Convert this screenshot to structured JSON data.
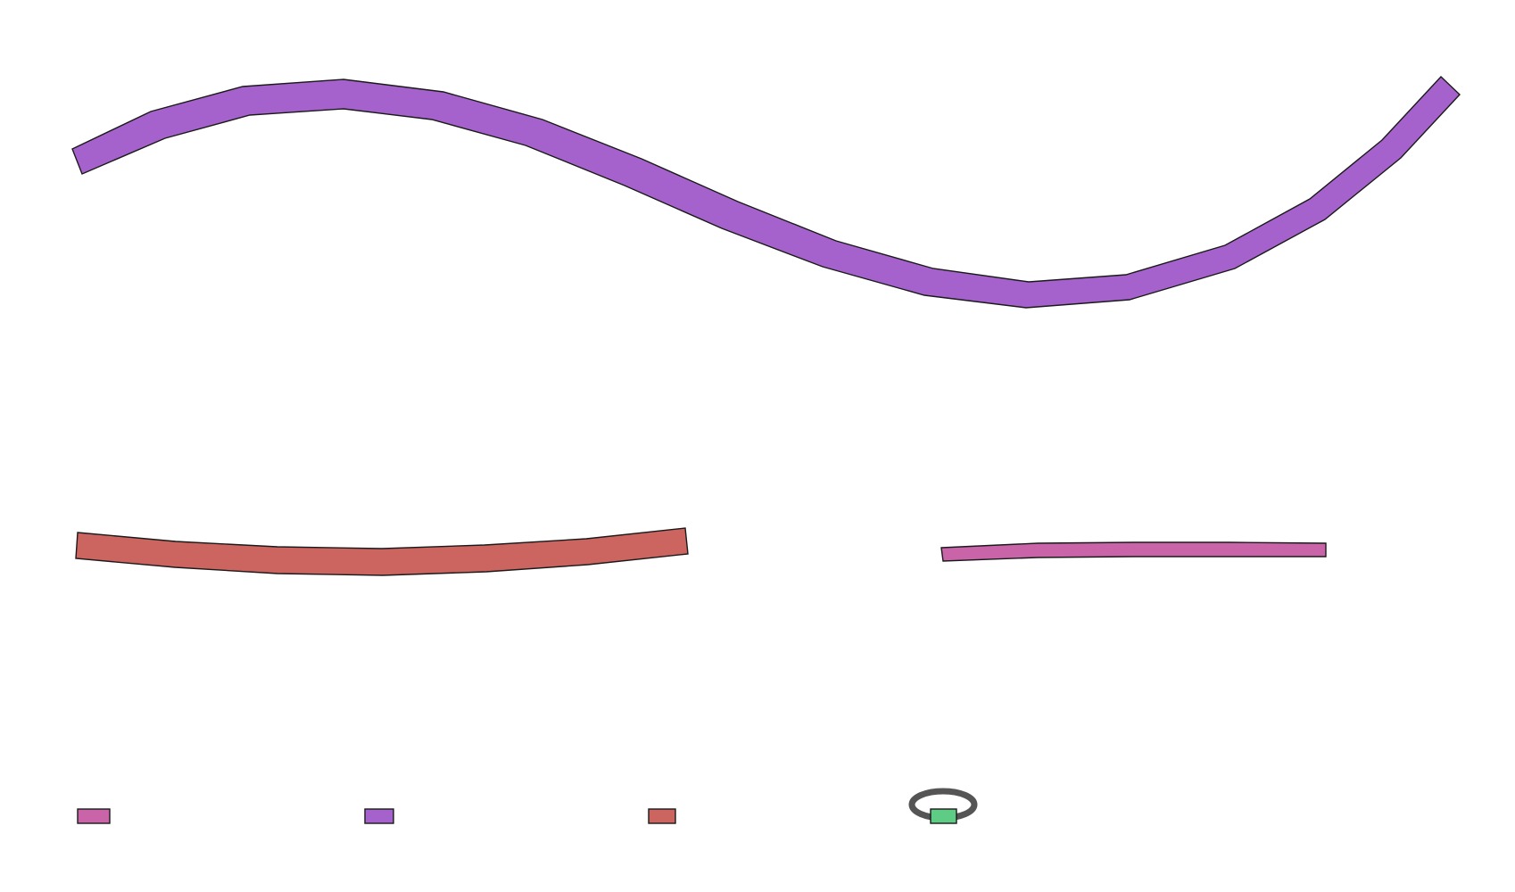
{
  "colors": {
    "background": "#ffffff",
    "outline": "#1a1a1a",
    "purple": "#a662cc",
    "red": "#cc6460",
    "pink": "#c964a8",
    "green": "#5ecc84",
    "loop_gray": "#555555"
  },
  "bands": [
    {
      "id": "purple",
      "color_key": "purple"
    },
    {
      "id": "red",
      "color_key": "red"
    },
    {
      "id": "pink",
      "color_key": "pink"
    }
  ],
  "legend_keys": [
    {
      "id": "pink",
      "color_key": "pink"
    },
    {
      "id": "purple",
      "color_key": "purple"
    },
    {
      "id": "red",
      "color_key": "red"
    },
    {
      "id": "green",
      "color_key": "green",
      "self_loop": true
    }
  ]
}
